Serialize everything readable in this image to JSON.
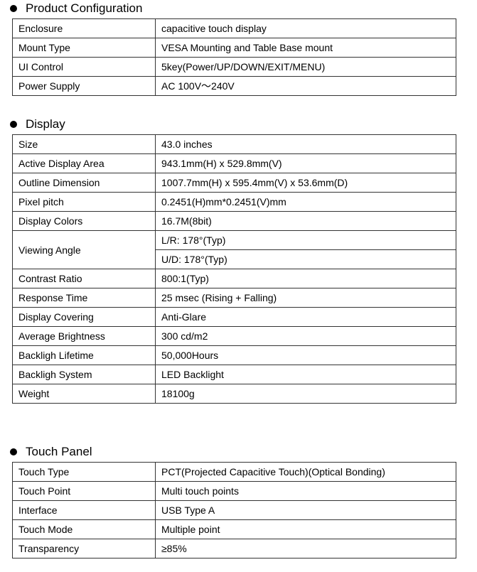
{
  "sections": [
    {
      "title": "Product Configuration",
      "rows": [
        {
          "key": "Enclosure",
          "value": "capacitive touch display"
        },
        {
          "key": "Mount Type",
          "value": "VESA Mounting and Table Base mount"
        },
        {
          "key": "UI Control",
          "value": "5key(Power/UP/DOWN/EXIT/MENU)"
        },
        {
          "key": "Power Supply",
          "value": "AC 100V～240V"
        }
      ]
    },
    {
      "title": "Display",
      "rows": [
        {
          "key": "Size",
          "value": "43.0 inches"
        },
        {
          "key": "Active Display Area",
          "value": "943.1mm(H) x 529.8mm(V)"
        },
        {
          "key": "Outline Dimension",
          "value": "1007.7mm(H) x 595.4mm(V) x 53.6mm(D)"
        },
        {
          "key": "Pixel pitch",
          "value": "0.2451(H)mm*0.2451(V)mm"
        },
        {
          "key": "Display Colors",
          "value": "16.7M(8bit)"
        },
        {
          "key": "Viewing Angle",
          "value": "L/R: 178°(Typ)",
          "value2": "U/D: 178°(Typ)"
        },
        {
          "key": "Contrast Ratio",
          "value": "800:1(Typ)"
        },
        {
          "key": "Response Time",
          "value": "25 msec (Rising + Falling)"
        },
        {
          "key": "Display Covering",
          "value": "Anti-Glare"
        },
        {
          "key": "Average Brightness",
          "value": "300 cd/m2"
        },
        {
          "key": "Backligh Lifetime",
          "value": "50,000Hours"
        },
        {
          "key": "Backligh System",
          "value": "LED Backlight"
        },
        {
          "key": "Weight",
          "value": "18100g"
        }
      ]
    },
    {
      "title": "Touch Panel",
      "rows": [
        {
          "key": "Touch Type",
          "value": "PCT(Projected Capacitive Touch)(Optical Bonding)"
        },
        {
          "key": "Touch Point",
          "value": "Multi touch points"
        },
        {
          "key": "Interface",
          "value": "USB Type A"
        },
        {
          "key": "Touch Mode",
          "value": "Multiple point"
        },
        {
          "key": "Transparency",
          "value": "≥85%"
        }
      ]
    }
  ]
}
